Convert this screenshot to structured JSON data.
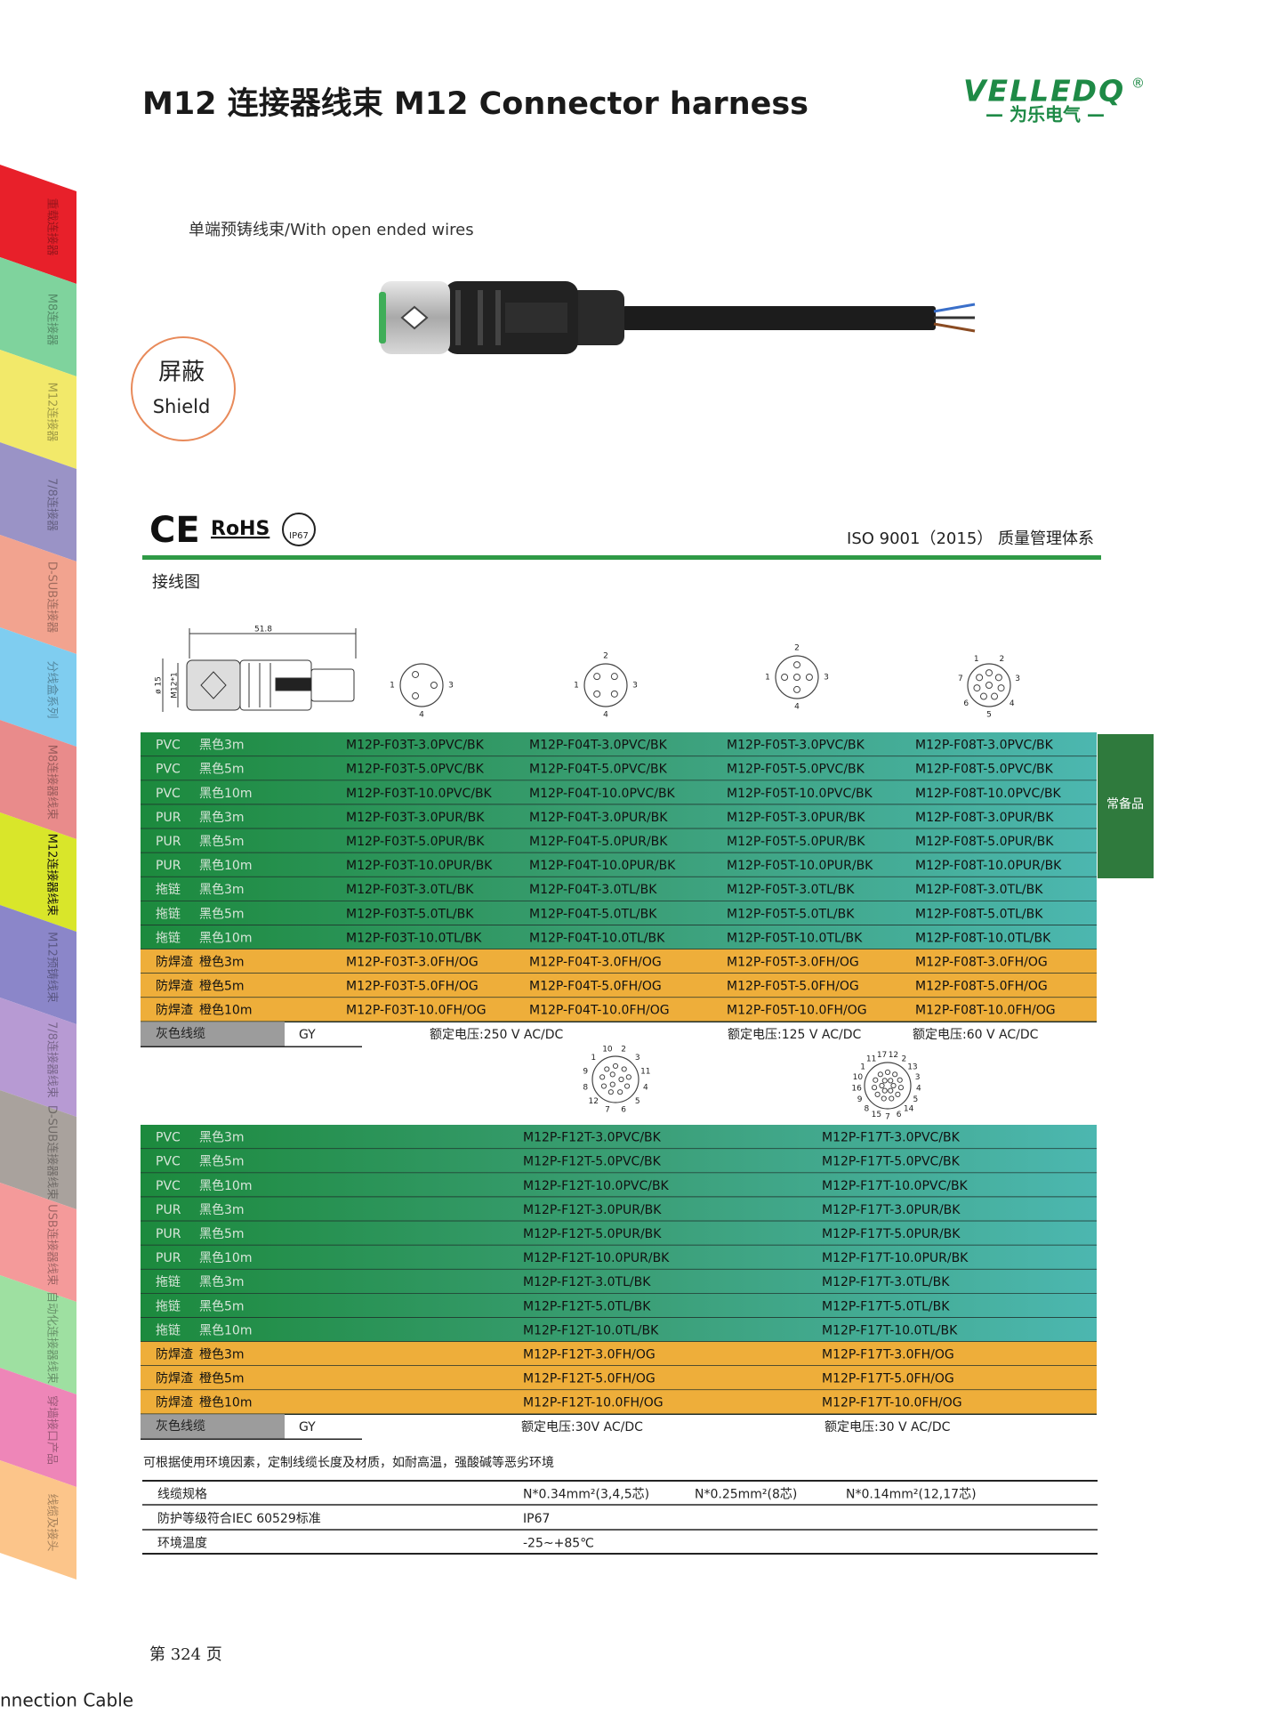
{
  "header": {
    "title": "M12 连接器线束 M12 Connector harness",
    "logo": "VELLEDQ",
    "logo_reg": "®",
    "logo_cn": "— 为乐电气 —"
  },
  "side_tabs": [
    "重载连接器",
    "M8连接器",
    "M12连接器",
    "7/8连接器",
    "D-SUB连接器",
    "分线盒系列",
    "M8连接器线束",
    "M12连接器线束",
    "M12预铸线束",
    "7/8连接器线束",
    "D-SUB连接器线束",
    "USB连接器线束",
    "自动化连接器线束",
    "穿墙接口产品",
    "线缆及接头"
  ],
  "subtitle": "单端预铸线束/With open ended wires",
  "badge": {
    "cn": "屏蔽",
    "en": "Shield"
  },
  "certifications": {
    "ce": "CE",
    "rohs": "RoHS",
    "ip": "IP67",
    "iso": "ISO 9001（2015） 质量管理体系"
  },
  "wiring_label": "接线图",
  "dimension": {
    "length": "51.8",
    "diameter": "ø 15",
    "thread": "M12*1"
  },
  "pin_diagrams": [
    {
      "pins": [
        "1",
        "3",
        "4"
      ]
    },
    {
      "pins": [
        "2",
        "1",
        "3",
        "4"
      ]
    },
    {
      "pins": [
        "2",
        "1",
        "3",
        "4"
      ]
    },
    {
      "pins": [
        "2",
        "3",
        "4",
        "5",
        "6",
        "7",
        "1"
      ]
    }
  ],
  "table1": {
    "rows": [
      [
        "PVC",
        "黑色3m",
        "M12P-F03T-3.0PVC/BK",
        "M12P-F04T-3.0PVC/BK",
        "M12P-F05T-3.0PVC/BK",
        "M12P-F08T-3.0PVC/BK"
      ],
      [
        "PVC",
        "黑色5m",
        "M12P-F03T-5.0PVC/BK",
        "M12P-F04T-5.0PVC/BK",
        "M12P-F05T-5.0PVC/BK",
        "M12P-F08T-5.0PVC/BK"
      ],
      [
        "PVC",
        "黑色10m",
        "M12P-F03T-10.0PVC/BK",
        "M12P-F04T-10.0PVC/BK",
        "M12P-F05T-10.0PVC/BK",
        "M12P-F08T-10.0PVC/BK"
      ],
      [
        "PUR",
        "黑色3m",
        "M12P-F03T-3.0PUR/BK",
        "M12P-F04T-3.0PUR/BK",
        "M12P-F05T-3.0PUR/BK",
        "M12P-F08T-3.0PUR/BK"
      ],
      [
        "PUR",
        "黑色5m",
        "M12P-F03T-5.0PUR/BK",
        "M12P-F04T-5.0PUR/BK",
        "M12P-F05T-5.0PUR/BK",
        "M12P-F08T-5.0PUR/BK"
      ],
      [
        "PUR",
        "黑色10m",
        "M12P-F03T-10.0PUR/BK",
        "M12P-F04T-10.0PUR/BK",
        "M12P-F05T-10.0PUR/BK",
        "M12P-F08T-10.0PUR/BK"
      ],
      [
        "拖链",
        "黑色3m",
        "M12P-F03T-3.0TL/BK",
        "M12P-F04T-3.0TL/BK",
        "M12P-F05T-3.0TL/BK",
        "M12P-F08T-3.0TL/BK"
      ],
      [
        "拖链",
        "黑色5m",
        "M12P-F03T-5.0TL/BK",
        "M12P-F04T-5.0TL/BK",
        "M12P-F05T-5.0TL/BK",
        "M12P-F08T-5.0TL/BK"
      ],
      [
        "拖链",
        "黑色10m",
        "M12P-F03T-10.0TL/BK",
        "M12P-F04T-10.0TL/BK",
        "M12P-F05T-10.0TL/BK",
        "M12P-F08T-10.0TL/BK"
      ],
      [
        "防焊渣",
        "橙色3m",
        "M12P-F03T-3.0FH/OG",
        "M12P-F04T-3.0FH/OG",
        "M12P-F05T-3.0FH/OG",
        "M12P-F08T-3.0FH/OG"
      ],
      [
        "防焊渣",
        "橙色5m",
        "M12P-F03T-5.0FH/OG",
        "M12P-F04T-5.0FH/OG",
        "M12P-F05T-5.0FH/OG",
        "M12P-F08T-5.0FH/OG"
      ],
      [
        "防焊渣",
        "橙色10m",
        "M12P-F03T-10.0FH/OG",
        "M12P-F04T-10.0FH/OG",
        "M12P-F05T-10.0FH/OG",
        "M12P-F08T-10.0FH/OG"
      ]
    ],
    "stock_note": "常备品",
    "footer": {
      "label": "灰色线缆",
      "code": "GY",
      "voltages": [
        "额定电压:250 V AC/DC",
        "额定电压:125 V AC/DC",
        "额定电压:60 V AC/DC"
      ]
    }
  },
  "pin_diagrams_2": [
    {
      "pins": [
        "2",
        "3",
        "11",
        "4",
        "5",
        "6",
        "7",
        "12",
        "8",
        "9",
        "1",
        "10"
      ]
    },
    {
      "pins": [
        "12",
        "2",
        "13",
        "3",
        "4",
        "5",
        "14",
        "6",
        "7",
        "15",
        "8",
        "9",
        "16",
        "10",
        "1",
        "11",
        "17"
      ]
    }
  ],
  "table2": {
    "rows": [
      [
        "PVC",
        "黑色3m",
        "M12P-F12T-3.0PVC/BK",
        "M12P-F17T-3.0PVC/BK"
      ],
      [
        "PVC",
        "黑色5m",
        "M12P-F12T-5.0PVC/BK",
        "M12P-F17T-5.0PVC/BK"
      ],
      [
        "PVC",
        "黑色10m",
        "M12P-F12T-10.0PVC/BK",
        "M12P-F17T-10.0PVC/BK"
      ],
      [
        "PUR",
        "黑色3m",
        "M12P-F12T-3.0PUR/BK",
        "M12P-F17T-3.0PUR/BK"
      ],
      [
        "PUR",
        "黑色5m",
        "M12P-F12T-5.0PUR/BK",
        "M12P-F17T-5.0PUR/BK"
      ],
      [
        "PUR",
        "黑色10m",
        "M12P-F12T-10.0PUR/BK",
        "M12P-F17T-10.0PUR/BK"
      ],
      [
        "拖链",
        "黑色3m",
        "M12P-F12T-3.0TL/BK",
        "M12P-F17T-3.0TL/BK"
      ],
      [
        "拖链",
        "黑色5m",
        "M12P-F12T-5.0TL/BK",
        "M12P-F17T-5.0TL/BK"
      ],
      [
        "拖链",
        "黑色10m",
        "M12P-F12T-10.0TL/BK",
        "M12P-F17T-10.0TL/BK"
      ],
      [
        "防焊渣",
        "橙色3m",
        "M12P-F12T-3.0FH/OG",
        "M12P-F17T-3.0FH/OG"
      ],
      [
        "防焊渣",
        "橙色5m",
        "M12P-F12T-5.0FH/OG",
        "M12P-F17T-5.0FH/OG"
      ],
      [
        "防焊渣",
        "橙色10m",
        "M12P-F12T-10.0FH/OG",
        "M12P-F17T-10.0FH/OG"
      ]
    ],
    "footer": {
      "label": "灰色线缆",
      "code": "GY",
      "voltages": [
        "额定电压:30V AC/DC",
        "额定电压:30 V AC/DC"
      ]
    }
  },
  "note": "可根据使用环境因素，定制线缆长度及材质，如耐高温，强酸碱等恶劣环境",
  "specs": {
    "rows": [
      [
        "线缆规格",
        "N*0.34mm²(3,4,5芯)",
        "N*0.25mm²(8芯)",
        "N*0.14mm²(12,17芯)"
      ],
      [
        "防护等级符合IEC 60529标准",
        "IP67"
      ],
      [
        "环境温度",
        "-25~+85℃"
      ]
    ]
  },
  "footer": {
    "page": "第 324 页",
    "running": "nnection Cable"
  }
}
